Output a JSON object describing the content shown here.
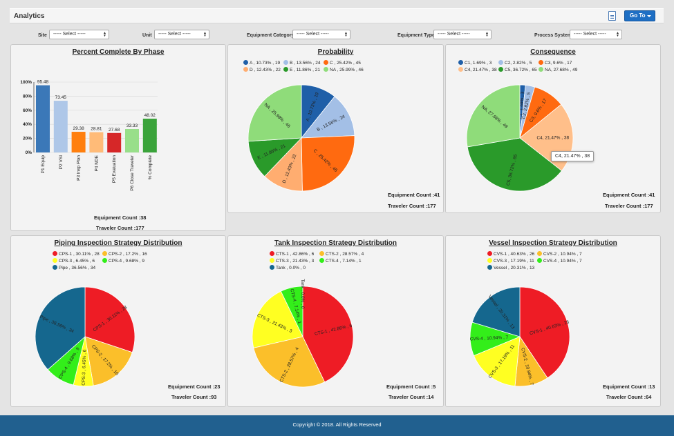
{
  "header": {
    "title": "Analytics",
    "goto_label": "Go To"
  },
  "filters": [
    {
      "label": "Site",
      "value": "----- Select -----"
    },
    {
      "label": "Unit",
      "value": "----- Select -----"
    },
    {
      "label": "Equipment Category",
      "value": "----- Select -----"
    },
    {
      "label": "Equipment Type",
      "value": "----- Select -----"
    },
    {
      "label": "Process System",
      "value": "----- Select -----"
    }
  ],
  "colors": {
    "footer": "#21608f",
    "accent": "#1e6fc4"
  },
  "panels": {
    "phase": {
      "title": "Percent Complete By Phase",
      "equipment_count": "Equipment Count :38",
      "traveler_count": "Traveler Count :177"
    },
    "probability": {
      "title": "Probability",
      "equipment_count": "Equipment Count :41",
      "traveler_count": "Traveler Count :177"
    },
    "consequence": {
      "title": "Consequence",
      "equipment_count": "Equipment Count :41",
      "traveler_count": "Traveler Count :177",
      "tooltip": "C4, 21.47% , 38"
    },
    "piping": {
      "title": "Piping Inspection Strategy Distribution",
      "equipment_count": "Equipment Count :23",
      "traveler_count": "Traveler Count :93"
    },
    "tank": {
      "title": "Tank Inspection Strategy Distribution",
      "equipment_count": "Equipment Count :5",
      "traveler_count": "Traveler Count :14"
    },
    "vessel": {
      "title": "Vessel Inspection Strategy Distribution",
      "equipment_count": "Equipment Count :13",
      "traveler_count": "Traveler Count :64"
    }
  },
  "footer": {
    "text": "Copyright © 2018. All Rights Reserved"
  },
  "chart_data": [
    {
      "id": "phase",
      "type": "bar",
      "title": "Percent Complete By Phase",
      "categories": [
        "P1 Equip",
        "P2 VSI",
        "P3 Insp Plan",
        "P4 NDE",
        "P5 Evaluation",
        "P6 Close Traveler",
        "% Complete"
      ],
      "values": [
        95.48,
        73.45,
        29.38,
        28.81,
        27.68,
        33.33,
        48.02
      ],
      "value_labels": [
        "95.48",
        "73.45",
        "29.38",
        "28.81",
        "27.68",
        "33.33",
        "48.02"
      ],
      "colors": [
        "#3b78b8",
        "#aec7e8",
        "#ff7f0e",
        "#ffbb78",
        "#d62728",
        "#98df8a",
        "#3aa33a"
      ],
      "yticks": [
        "0%",
        "20%",
        "40%",
        "60%",
        "80%",
        "100%"
      ],
      "ylim": [
        0,
        100
      ]
    },
    {
      "id": "probability",
      "type": "pie",
      "title": "Probability",
      "slices": [
        {
          "name": "A",
          "value": 19,
          "pct": 10.73,
          "color": "#1f5fa8",
          "label": "A , 10.73% , 19"
        },
        {
          "name": "B",
          "value": 24,
          "pct": 13.56,
          "color": "#a3bfe6",
          "label": "B , 13.56% , 24"
        },
        {
          "name": "C",
          "value": 45,
          "pct": 25.42,
          "color": "#ff6a10",
          "label": "C , 25.42% , 45"
        },
        {
          "name": "D",
          "value": 22,
          "pct": 12.43,
          "color": "#ffad70",
          "label": "D , 12.43% , 22"
        },
        {
          "name": "E",
          "value": 21,
          "pct": 11.86,
          "color": "#2a9a2a",
          "label": "E , 11.86% , 21"
        },
        {
          "name": "NA",
          "value": 46,
          "pct": 25.99,
          "color": "#8fdc7a",
          "label": "NA , 25.99% , 46"
        }
      ]
    },
    {
      "id": "consequence",
      "type": "pie",
      "title": "Consequence",
      "slices": [
        {
          "name": "C1",
          "value": 3,
          "pct": 1.69,
          "color": "#1f5fa8",
          "label": "C1, 1.69% , 3"
        },
        {
          "name": "C2",
          "value": 5,
          "pct": 2.82,
          "color": "#a3bfe6",
          "label": "C2, 2.82% , 5"
        },
        {
          "name": "C3",
          "value": 17,
          "pct": 9.6,
          "color": "#ff6a10",
          "label": "C3, 9.6% , 17"
        },
        {
          "name": "C4",
          "value": 38,
          "pct": 21.47,
          "color": "#ffbf8a",
          "label": "C4, 21.47% , 38"
        },
        {
          "name": "C5",
          "value": 65,
          "pct": 36.72,
          "color": "#2a9a2a",
          "label": "C5, 36.72% , 65"
        },
        {
          "name": "NA",
          "value": 49,
          "pct": 27.68,
          "color": "#8fdc7a",
          "label": "NA, 27.68% , 49"
        }
      ]
    },
    {
      "id": "piping",
      "type": "pie",
      "title": "Piping Inspection Strategy Distribution",
      "slices": [
        {
          "name": "CPS-1",
          "value": 28,
          "pct": 30.11,
          "color": "#ee1c25",
          "label": "CPS-1 , 30.11% , 28"
        },
        {
          "name": "CPS-2",
          "value": 16,
          "pct": 17.2,
          "color": "#fbbf2a",
          "label": "CPS-2 , 17.2% , 16"
        },
        {
          "name": "CPS-3",
          "value": 6,
          "pct": 6.45,
          "color": "#ffff22",
          "label": "CPS-3 , 6.45% , 6"
        },
        {
          "name": "CPS-4",
          "value": 9,
          "pct": 9.68,
          "color": "#33ee1a",
          "label": "CPS-4 , 9.68% , 9"
        },
        {
          "name": "Pipe",
          "value": 34,
          "pct": 36.56,
          "color": "#15678e",
          "label": "Pipe , 36.56% , 34"
        }
      ]
    },
    {
      "id": "tank",
      "type": "pie",
      "title": "Tank Inspection Strategy Distribution",
      "slices": [
        {
          "name": "CTS-1",
          "value": 6,
          "pct": 42.86,
          "color": "#ee1c25",
          "label": "CTS-1 , 42.86% , 6"
        },
        {
          "name": "CTS-2",
          "value": 4,
          "pct": 28.57,
          "color": "#fbbf2a",
          "label": "CTS-2 , 28.57% , 4"
        },
        {
          "name": "CTS-3",
          "value": 3,
          "pct": 21.43,
          "color": "#ffff22",
          "label": "CTS-3 , 21.43% , 3"
        },
        {
          "name": "CTS-4",
          "value": 1,
          "pct": 7.14,
          "color": "#33ee1a",
          "label": "CTS-4 , 7.14% , 1"
        },
        {
          "name": "Tank",
          "value": 0,
          "pct": 0.0,
          "color": "#15678e",
          "label": "Tank , 0.0% , 0"
        }
      ]
    },
    {
      "id": "vessel",
      "type": "pie",
      "title": "Vessel Inspection Strategy Distribution",
      "slices": [
        {
          "name": "CVS-1",
          "value": 26,
          "pct": 40.63,
          "color": "#ee1c25",
          "label": "CVS-1 , 40.63% , 26"
        },
        {
          "name": "CVS-2",
          "value": 7,
          "pct": 10.94,
          "color": "#fbbf2a",
          "label": "CVS-2 , 10.94% , 7"
        },
        {
          "name": "CVS-3",
          "value": 11,
          "pct": 17.19,
          "color": "#ffff22",
          "label": "CVS-3 , 17.19% , 11"
        },
        {
          "name": "CVS-4",
          "value": 7,
          "pct": 10.94,
          "color": "#33ee1a",
          "label": "CVS-4 , 10.94% , 7"
        },
        {
          "name": "Vessel",
          "value": 13,
          "pct": 20.31,
          "color": "#15678e",
          "label": "Vessel , 20.31% , 13"
        }
      ]
    }
  ]
}
